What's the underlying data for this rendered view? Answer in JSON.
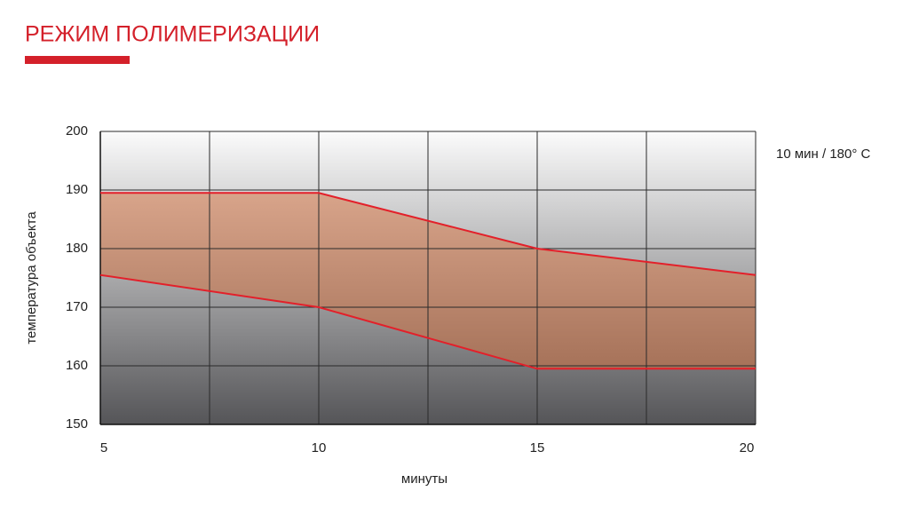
{
  "title": "РЕЖИМ ПОЛИМЕРИЗАЦИИ",
  "chart_data": {
    "type": "range-area",
    "x_label": "минуты",
    "y_label": "температура объекта",
    "annotation": "10 мин / 180° C",
    "x": [
      5,
      10,
      15,
      20
    ],
    "series": [
      {
        "color": "#e3202a",
        "values": [
          189.5,
          189.5,
          180,
          175.5
        ]
      },
      {
        "color": "#e3202a",
        "values": [
          175.5,
          170,
          159.5,
          159.5
        ]
      }
    ],
    "fill_color": "#d8703c",
    "xlim": [
      5,
      20
    ],
    "xticks": [
      5,
      10,
      15,
      20
    ],
    "xgrid": [
      7.5,
      12.5,
      17.5
    ],
    "ylim": [
      150,
      200
    ],
    "yticks": [
      150,
      160,
      170,
      180,
      190,
      200
    ],
    "grid": true
  }
}
